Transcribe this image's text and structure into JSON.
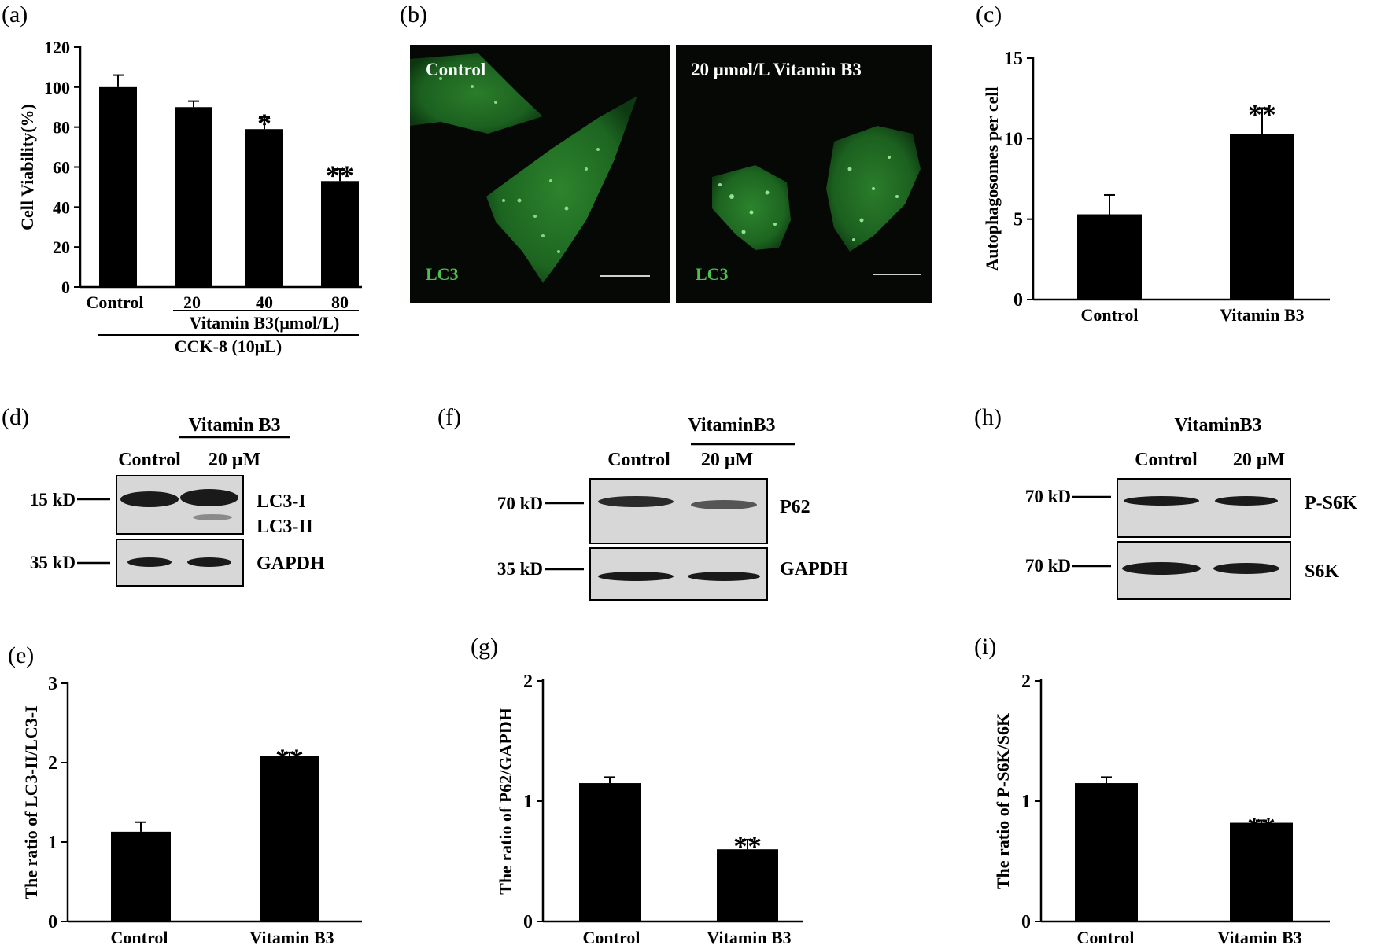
{
  "panel_labels": {
    "a": "(a)",
    "b": "(b)",
    "c": "(c)",
    "d": "(d)",
    "e": "(e)",
    "f": "(f)",
    "g": "(g)",
    "h": "(h)",
    "i": "(i)"
  },
  "colors": {
    "bar": "#000000",
    "axis": "#000000",
    "fluorescence": "#4cc24c",
    "micrograph_bg": "#050805",
    "blot_bg": "#d7d7d7",
    "band": "#1a1a1a"
  },
  "chart_data": [
    {
      "id": "a",
      "type": "bar",
      "categories": [
        "Control",
        "20",
        "40",
        "80"
      ],
      "values": [
        100,
        90,
        79,
        53
      ],
      "errors": [
        6,
        3,
        6,
        6
      ],
      "significance": [
        "",
        "",
        "*",
        "**"
      ],
      "ylabel": "Cell Viability(%)",
      "ylim": [
        0,
        120
      ],
      "yticks": [
        0,
        20,
        40,
        60,
        80,
        100,
        120
      ],
      "group_label_1": "Vitamin B3(μmol/L)",
      "group_label_2": "CCK-8 (10μL)"
    },
    {
      "id": "c",
      "type": "bar",
      "categories": [
        "Control",
        "Vitamin B3"
      ],
      "values": [
        5.3,
        10.3
      ],
      "errors": [
        1.2,
        1.6
      ],
      "significance": [
        "",
        "**"
      ],
      "ylabel": "Autophagosomes per cell",
      "ylim": [
        0,
        15
      ],
      "yticks": [
        0,
        5,
        10,
        15
      ]
    },
    {
      "id": "e",
      "type": "bar",
      "categories": [
        "Control",
        "Vitamin B3"
      ],
      "values": [
        1.13,
        2.08
      ],
      "errors": [
        0.12,
        0.05
      ],
      "significance": [
        "",
        "**"
      ],
      "ylabel": "The ratio of LC3-II/LC3-I",
      "ylim": [
        0,
        3
      ],
      "yticks": [
        0,
        1,
        2,
        3
      ]
    },
    {
      "id": "g",
      "type": "bar",
      "categories": [
        "Control",
        "Vitamin B3"
      ],
      "values": [
        1.15,
        0.6
      ],
      "errors": [
        0.05,
        0.08
      ],
      "significance": [
        "",
        "**"
      ],
      "ylabel": "The ratio of P62/GAPDH",
      "ylim": [
        0,
        2
      ],
      "yticks": [
        0,
        1,
        2
      ]
    },
    {
      "id": "i",
      "type": "bar",
      "categories": [
        "Control",
        "Vitamin B3"
      ],
      "values": [
        1.15,
        0.82
      ],
      "errors": [
        0.05,
        0.02
      ],
      "significance": [
        "",
        "**"
      ],
      "ylabel": "The ratio of P-S6K/S6K",
      "ylim": [
        0,
        2
      ],
      "yticks": [
        0,
        1,
        2
      ]
    }
  ],
  "micrographs": {
    "left_title": "Control",
    "right_title": "20 μmol/L Vitamin B3",
    "stain_label": "LC3"
  },
  "blots": {
    "d": {
      "group_label": "Vitamin B3",
      "lane_labels": [
        "Control",
        "20 μM"
      ],
      "markers": [
        "15 kD",
        "35 kD"
      ],
      "protein_labels": [
        "LC3-I",
        "LC3-II",
        "GAPDH"
      ]
    },
    "f": {
      "group_label": "VitaminB3",
      "lane_labels": [
        "Control",
        "20 μM"
      ],
      "markers": [
        "70 kD",
        "35 kD"
      ],
      "protein_labels": [
        "P62",
        "GAPDH"
      ]
    },
    "h": {
      "group_label": "VitaminB3",
      "lane_labels": [
        "Control",
        "20 μM"
      ],
      "markers": [
        "70 kD",
        "70 kD"
      ],
      "protein_labels": [
        "P-S6K",
        "S6K"
      ]
    }
  }
}
